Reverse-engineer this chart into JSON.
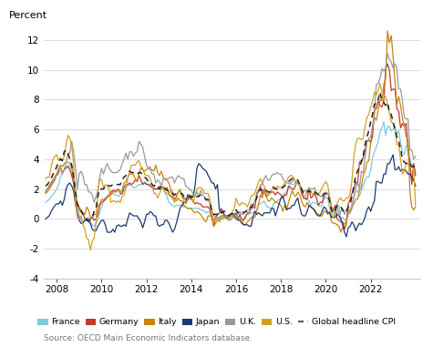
{
  "title": "",
  "ylabel": "Percent",
  "source": "Source: OECD Main Economic Indicators database.",
  "xlim": [
    2007.4,
    2024.2
  ],
  "ylim": [
    -4,
    13
  ],
  "yticks": [
    -4,
    -2,
    0,
    2,
    4,
    6,
    8,
    10,
    12
  ],
  "xticks": [
    2008,
    2010,
    2012,
    2014,
    2016,
    2018,
    2020,
    2022
  ],
  "colors": {
    "France": "#7ec8e3",
    "Germany": "#c0392b",
    "Italy": "#c8860a",
    "Japan": "#1a3a6e",
    "UK": "#999999",
    "US": "#d4a020",
    "Global": "#222222"
  }
}
